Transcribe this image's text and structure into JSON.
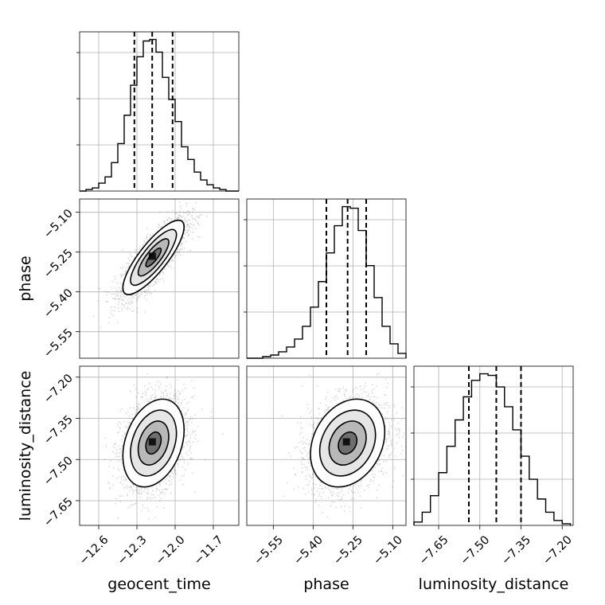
{
  "chart_data": {
    "type": "corner",
    "params": [
      {
        "name": "geocent_time",
        "label": "geocent_time",
        "lim": [
          -12.75,
          -11.5
        ],
        "ticks": [
          "-12.6",
          "-12.3",
          "-12.0",
          "-11.7"
        ],
        "quantiles": [
          -12.32,
          -12.18,
          -12.02
        ]
      },
      {
        "name": "phase",
        "label": "phase",
        "lim": [
          -5.65,
          -5.05
        ],
        "ticks": [
          "-5.55",
          "-5.40",
          "-5.25",
          "-5.10"
        ],
        "quantiles": [
          -5.35,
          -5.27,
          -5.2
        ]
      },
      {
        "name": "luminosity_distance",
        "label": "luminosity_distance",
        "lim": [
          -7.74,
          -7.16
        ],
        "ticks": [
          "-7.65",
          "-7.50",
          "-7.35",
          "-7.20"
        ],
        "quantiles": [
          -7.54,
          -7.44,
          -7.35
        ]
      }
    ],
    "histograms": [
      {
        "param": "geocent_time",
        "bin_edges": [
          -12.75,
          -12.7,
          -12.65,
          -12.6,
          -12.55,
          -12.5,
          -12.45,
          -12.4,
          -12.35,
          -12.3,
          -12.25,
          -12.2,
          -12.15,
          -12.1,
          -12.05,
          -12.0,
          -11.95,
          -11.9,
          -11.85,
          -11.8,
          -11.75,
          -11.7,
          -11.65,
          -11.6,
          -11.55,
          -11.5
        ],
        "counts": [
          0,
          1,
          2,
          5,
          9,
          18,
          30,
          48,
          67,
          85,
          95,
          96,
          88,
          72,
          58,
          44,
          28,
          20,
          12,
          7,
          4,
          2,
          1,
          0,
          0
        ]
      },
      {
        "param": "phase",
        "bin_edges": [
          -5.65,
          -5.62,
          -5.59,
          -5.56,
          -5.53,
          -5.5,
          -5.47,
          -5.44,
          -5.41,
          -5.38,
          -5.35,
          -5.32,
          -5.29,
          -5.26,
          -5.23,
          -5.2,
          -5.17,
          -5.14,
          -5.11,
          -5.08,
          -5.05
        ],
        "counts": [
          0,
          0,
          1,
          2,
          4,
          7,
          12,
          20,
          32,
          48,
          66,
          83,
          95,
          94,
          80,
          58,
          38,
          20,
          9,
          3
        ]
      },
      {
        "param": "luminosity_distance",
        "bin_edges": [
          -7.74,
          -7.71,
          -7.68,
          -7.65,
          -7.62,
          -7.59,
          -7.56,
          -7.53,
          -7.5,
          -7.47,
          -7.44,
          -7.41,
          -7.38,
          -7.35,
          -7.32,
          -7.29,
          -7.26,
          -7.23,
          -7.2,
          -7.17
        ],
        "counts": [
          2,
          8,
          18,
          32,
          48,
          64,
          78,
          88,
          92,
          91,
          84,
          72,
          58,
          42,
          28,
          16,
          8,
          3,
          1
        ]
      }
    ],
    "pairs": [
      {
        "x": "geocent_time",
        "y": "phase",
        "mean": [
          -12.17,
          -5.27
        ],
        "sd": [
          0.12,
          0.07
        ],
        "rho": 0.82
      },
      {
        "x": "geocent_time",
        "y": "luminosity_distance",
        "mean": [
          -12.17,
          -7.44
        ],
        "sd": [
          0.12,
          0.08
        ],
        "rho": 0.3
      },
      {
        "x": "phase",
        "y": "luminosity_distance",
        "mean": [
          -5.27,
          -7.44
        ],
        "sd": [
          0.07,
          0.08
        ],
        "rho": 0.25
      }
    ],
    "contour_levels": [
      0.5,
      1.0,
      1.5,
      2.0
    ],
    "grid": true
  }
}
